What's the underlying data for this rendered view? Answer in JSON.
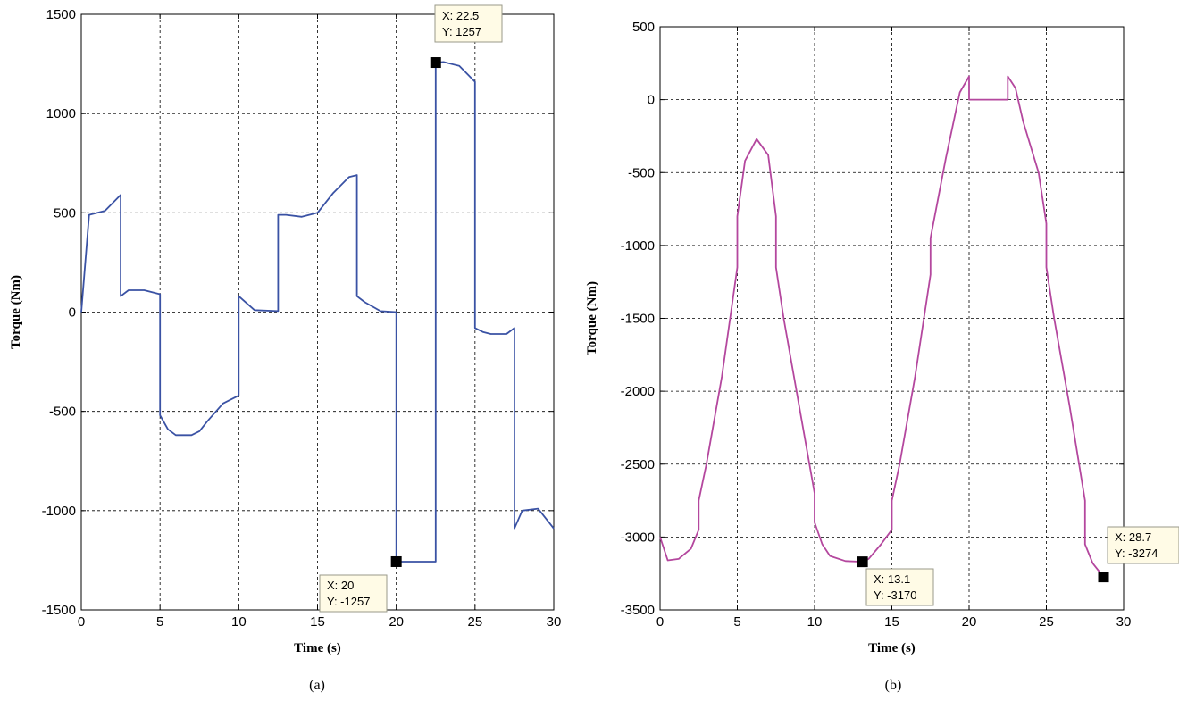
{
  "chart_data": [
    {
      "type": "line",
      "caption": "(a)",
      "xlabel": "Time (s)",
      "ylabel": "Torque (Nm)",
      "xlim": [
        0,
        30
      ],
      "ylim": [
        -1500,
        1500
      ],
      "xticks": [
        0,
        5,
        10,
        15,
        20,
        25,
        30
      ],
      "yticks": [
        -1500,
        -1000,
        -500,
        0,
        500,
        1000,
        1500
      ],
      "grid": true,
      "series": [
        {
          "color": "#3a52a4",
          "x": [
            0,
            0.5,
            1.5,
            2.5,
            2.5,
            3,
            4,
            5,
            5,
            5.5,
            6,
            7,
            7.5,
            8,
            9,
            10,
            10,
            11,
            12.5,
            12.5,
            13,
            14,
            15,
            16,
            17,
            17.5,
            17.5,
            18,
            19,
            20,
            20,
            22.5,
            22.5,
            23,
            24,
            25,
            25,
            25.5,
            26,
            27,
            27.5,
            27.5,
            28,
            29,
            30
          ],
          "y": [
            0,
            490,
            510,
            590,
            80,
            110,
            110,
            90,
            -520,
            -590,
            -620,
            -620,
            -600,
            -550,
            -460,
            -420,
            80,
            10,
            5,
            490,
            490,
            480,
            500,
            600,
            680,
            690,
            80,
            50,
            5,
            0,
            -1257,
            -1257,
            1257,
            1260,
            1240,
            1160,
            -80,
            -100,
            -110,
            -110,
            -80,
            -1090,
            -1000,
            -990,
            -1090
          ]
        }
      ],
      "datatips": [
        {
          "x": 22.5,
          "y": 1257,
          "line1": "X: 22.5",
          "line2": "Y: 1257"
        },
        {
          "x": 20,
          "y": -1257,
          "line1": "X: 20",
          "line2": "Y: -1257"
        }
      ]
    },
    {
      "type": "line",
      "caption": "(b)",
      "xlabel": "Time (s)",
      "ylabel": "Torque (Nm)",
      "xlim": [
        0,
        30
      ],
      "ylim": [
        -3500,
        500
      ],
      "xticks": [
        0,
        5,
        10,
        15,
        20,
        25,
        30
      ],
      "yticks": [
        -3500,
        -3000,
        -2500,
        -2000,
        -1500,
        -1000,
        -500,
        0,
        500
      ],
      "grid": true,
      "series": [
        {
          "color": "#b4479e",
          "x": [
            0,
            0.5,
            1.2,
            2,
            2.5,
            2.5,
            3,
            4,
            5,
            5,
            5.5,
            6.25,
            7,
            7.5,
            7.5,
            8,
            9,
            10,
            10,
            10.5,
            11,
            12,
            13.1,
            13.5,
            14.3,
            15,
            15,
            15.5,
            16.5,
            17.5,
            17.5,
            18.5,
            19.4,
            20,
            20,
            22.5,
            22.5,
            23,
            23.5,
            24.5,
            25,
            25,
            25.5,
            26.5,
            27.5,
            27.5,
            28,
            28.7
          ],
          "y": [
            -3000,
            -3160,
            -3150,
            -3080,
            -2950,
            -2750,
            -2500,
            -1900,
            -1150,
            -800,
            -420,
            -270,
            -380,
            -800,
            -1150,
            -1500,
            -2100,
            -2700,
            -2900,
            -3050,
            -3130,
            -3165,
            -3170,
            -3150,
            -3050,
            -2950,
            -2750,
            -2500,
            -1900,
            -1200,
            -950,
            -400,
            50,
            160,
            0,
            0,
            160,
            80,
            -150,
            -500,
            -850,
            -1150,
            -1500,
            -2100,
            -2750,
            -3050,
            -3180,
            -3274
          ]
        }
      ],
      "datatips": [
        {
          "x": 13.1,
          "y": -3170,
          "line1": "X: 13.1",
          "line2": "Y: -3170"
        },
        {
          "x": 28.7,
          "y": -3274,
          "line1": "X: 28.7",
          "line2": "Y: -3274"
        }
      ]
    }
  ]
}
